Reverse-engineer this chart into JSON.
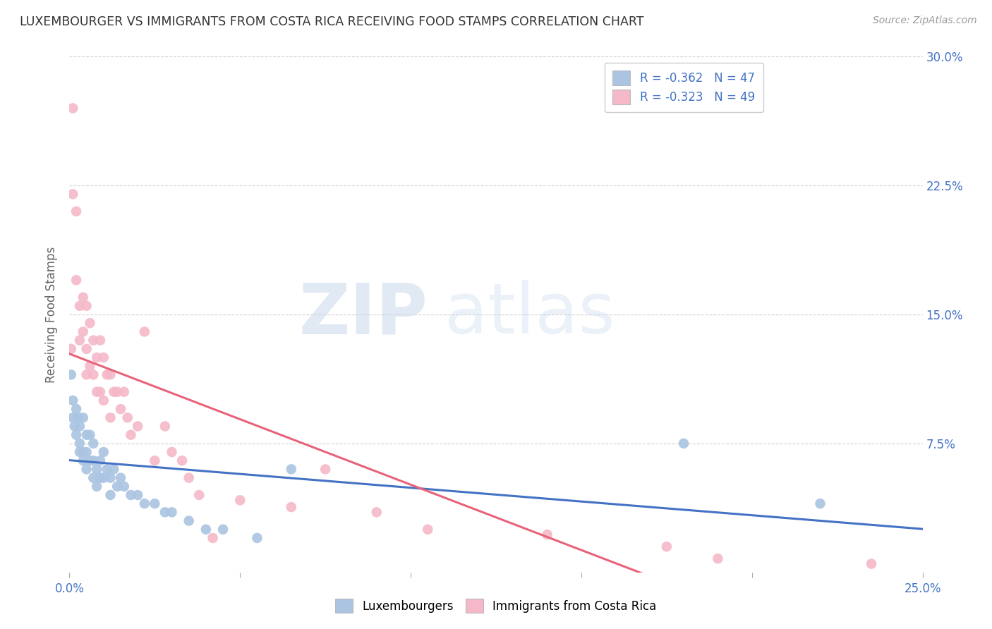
{
  "title": "LUXEMBOURGER VS IMMIGRANTS FROM COSTA RICA RECEIVING FOOD STAMPS CORRELATION CHART",
  "source": "Source: ZipAtlas.com",
  "ylabel": "Receiving Food Stamps",
  "xlim": [
    0.0,
    0.25
  ],
  "ylim": [
    0.0,
    0.3
  ],
  "y_ticks_right": [
    0.0,
    0.075,
    0.15,
    0.225,
    0.3
  ],
  "y_tick_labels_right": [
    "",
    "7.5%",
    "15.0%",
    "22.5%",
    "30.0%"
  ],
  "blue_scatter_color": "#aac4e2",
  "pink_scatter_color": "#f5b8c8",
  "blue_line_color": "#4472c4",
  "pink_line_color": "#e8637a",
  "axis_color": "#4472c4",
  "grid_color": "#d0d0d0",
  "background_color": "#ffffff",
  "watermark_zip": "ZIP",
  "watermark_atlas": "atlas",
  "luxembourger_x": [
    0.0005,
    0.001,
    0.001,
    0.0015,
    0.002,
    0.002,
    0.0025,
    0.003,
    0.003,
    0.003,
    0.004,
    0.004,
    0.004,
    0.005,
    0.005,
    0.005,
    0.006,
    0.006,
    0.007,
    0.007,
    0.007,
    0.008,
    0.008,
    0.009,
    0.009,
    0.01,
    0.01,
    0.011,
    0.012,
    0.012,
    0.013,
    0.014,
    0.015,
    0.016,
    0.018,
    0.02,
    0.022,
    0.025,
    0.028,
    0.03,
    0.035,
    0.04,
    0.045,
    0.055,
    0.065,
    0.18,
    0.22
  ],
  "luxembourger_y": [
    0.115,
    0.1,
    0.09,
    0.085,
    0.095,
    0.08,
    0.09,
    0.085,
    0.075,
    0.07,
    0.09,
    0.07,
    0.065,
    0.08,
    0.07,
    0.06,
    0.08,
    0.065,
    0.075,
    0.065,
    0.055,
    0.06,
    0.05,
    0.065,
    0.055,
    0.07,
    0.055,
    0.06,
    0.055,
    0.045,
    0.06,
    0.05,
    0.055,
    0.05,
    0.045,
    0.045,
    0.04,
    0.04,
    0.035,
    0.035,
    0.03,
    0.025,
    0.025,
    0.02,
    0.06,
    0.075,
    0.04
  ],
  "costarica_x": [
    0.0005,
    0.001,
    0.001,
    0.002,
    0.002,
    0.003,
    0.003,
    0.004,
    0.004,
    0.005,
    0.005,
    0.005,
    0.006,
    0.006,
    0.007,
    0.007,
    0.008,
    0.008,
    0.009,
    0.009,
    0.01,
    0.01,
    0.011,
    0.012,
    0.012,
    0.013,
    0.014,
    0.015,
    0.016,
    0.017,
    0.018,
    0.02,
    0.022,
    0.025,
    0.028,
    0.03,
    0.033,
    0.035,
    0.038,
    0.042,
    0.05,
    0.065,
    0.075,
    0.09,
    0.105,
    0.14,
    0.175,
    0.19,
    0.235
  ],
  "costarica_y": [
    0.13,
    0.27,
    0.22,
    0.21,
    0.17,
    0.155,
    0.135,
    0.16,
    0.14,
    0.155,
    0.13,
    0.115,
    0.145,
    0.12,
    0.135,
    0.115,
    0.125,
    0.105,
    0.135,
    0.105,
    0.125,
    0.1,
    0.115,
    0.115,
    0.09,
    0.105,
    0.105,
    0.095,
    0.105,
    0.09,
    0.08,
    0.085,
    0.14,
    0.065,
    0.085,
    0.07,
    0.065,
    0.055,
    0.045,
    0.02,
    0.042,
    0.038,
    0.06,
    0.035,
    0.025,
    0.022,
    0.015,
    0.008,
    0.005
  ]
}
